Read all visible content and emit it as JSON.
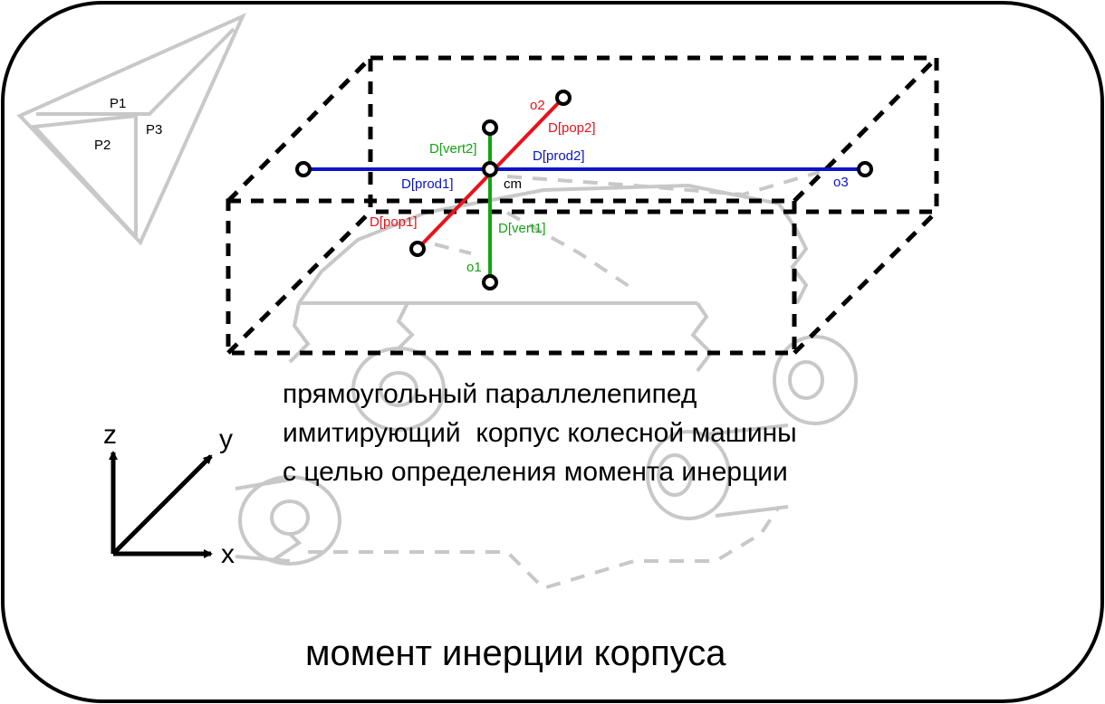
{
  "colors": {
    "frame": "#000000",
    "ghost": "#c8c8c8",
    "red": "#e8121c",
    "green": "#13a413",
    "blue": "#0a14c8",
    "black": "#000000"
  },
  "triangle_labels": {
    "p1": "P1",
    "p2": "P2",
    "p3": "P3"
  },
  "points": {
    "cm": "cm",
    "o1": "o1",
    "o2": "o2",
    "o3": "o3"
  },
  "segments": {
    "vert1": "D[vert1]",
    "vert2": "D[vert2]",
    "pop1": "D[pop1]",
    "pop2": "D[pop2]",
    "prod1": "D[prod1]",
    "prod2": "D[prod2]"
  },
  "description": {
    "line1": "прямоугольный параллелепипед",
    "line2": "имитирующий  корпус колесной машины",
    "line3": "с целью определения момента инерции"
  },
  "axes": {
    "x": "x",
    "y": "y",
    "z": "z"
  },
  "title": "момент инерции корпуса"
}
